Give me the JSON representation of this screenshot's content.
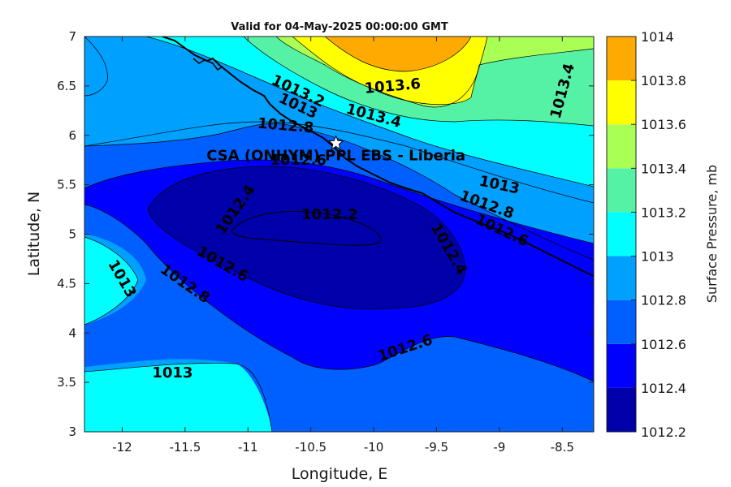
{
  "chart_data": {
    "type": "contour",
    "title": "Valid for 04-May-2025 00:00:00 GMT",
    "xlabel": "Longitude, E",
    "ylabel": "Latitude, N",
    "xlim": [
      -12.3,
      -8.25
    ],
    "ylim": [
      3,
      7
    ],
    "xticks": [
      "-12",
      "-11.5",
      "-11",
      "-10.5",
      "-10",
      "-9.5",
      "-9",
      "-8.5"
    ],
    "xtick_values": [
      -12,
      -11.5,
      -11,
      -10.5,
      -10,
      -9.5,
      -9,
      -8.5
    ],
    "yticks": [
      "3",
      "3.5",
      "4",
      "4.5",
      "5",
      "5.5",
      "6",
      "6.5",
      "7"
    ],
    "ytick_values": [
      3,
      3.5,
      4,
      4.5,
      5,
      5.5,
      6,
      6.5,
      7
    ],
    "colorbar": {
      "label": "Surface Pressure, mb",
      "levels": [
        1012.2,
        1012.4,
        1012.6,
        1012.8,
        1013,
        1013.2,
        1013.4,
        1013.6,
        1013.8,
        1014
      ],
      "tick_labels": [
        "1012.2",
        "1012.4",
        "1012.6",
        "1012.8",
        "1013",
        "1013.2",
        "1013.4",
        "1013.6",
        "1013.8",
        "1014"
      ],
      "colors": [
        "#0000aa",
        "#0000ff",
        "#0060ff",
        "#00a0ff",
        "#00ffff",
        "#55f2a6",
        "#aaff55",
        "#ffff00",
        "#ffaa00",
        "#ff5500"
      ]
    },
    "contour_labels": [
      {
        "text": "1013.6",
        "lon": -9.85,
        "lat": 6.5,
        "rot": -5
      },
      {
        "text": "1013.4",
        "lon": -8.5,
        "lat": 6.45,
        "rot": -75
      },
      {
        "text": "1013.2",
        "lon": -10.6,
        "lat": 6.45,
        "rot": 25
      },
      {
        "text": "1013.4",
        "lon": -10.0,
        "lat": 6.2,
        "rot": 15
      },
      {
        "text": "1013",
        "lon": -10.6,
        "lat": 6.3,
        "rot": 25
      },
      {
        "text": "1012.8",
        "lon": -10.7,
        "lat": 6.1,
        "rot": 5
      },
      {
        "text": "1012.6",
        "lon": -10.6,
        "lat": 5.75,
        "rot": 0
      },
      {
        "text": "1013",
        "lon": -9.0,
        "lat": 5.5,
        "rot": 12
      },
      {
        "text": "1012.8",
        "lon": -9.1,
        "lat": 5.3,
        "rot": 20
      },
      {
        "text": "1012.6",
        "lon": -8.98,
        "lat": 5.04,
        "rot": 25
      },
      {
        "text": "1012.4",
        "lon": -11.1,
        "lat": 5.25,
        "rot": -55
      },
      {
        "text": "1012.2",
        "lon": -10.35,
        "lat": 5.2,
        "rot": 0
      },
      {
        "text": "1012.4",
        "lon": -9.4,
        "lat": 4.85,
        "rot": 60
      },
      {
        "text": "1012.6",
        "lon": -11.2,
        "lat": 4.7,
        "rot": 30
      },
      {
        "text": "1012.8",
        "lon": -11.5,
        "lat": 4.5,
        "rot": 35
      },
      {
        "text": "1013",
        "lon": -12.0,
        "lat": 4.55,
        "rot": 60
      },
      {
        "text": "1012.6",
        "lon": -9.75,
        "lat": 3.85,
        "rot": -18
      },
      {
        "text": "1013",
        "lon": -11.6,
        "lat": 3.6,
        "rot": 0
      }
    ],
    "annotation": {
      "text": "CSA (ONHYM) PPL EBS  - Liberia",
      "lon": -10.3,
      "lat": 5.92
    }
  }
}
